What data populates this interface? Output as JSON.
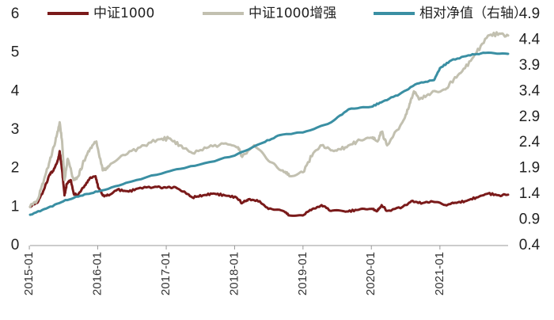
{
  "chart_data": {
    "type": "line",
    "title": "",
    "xlabel": "",
    "ylabel": "",
    "ylim": [
      0,
      6
    ],
    "y2lim": [
      0.4,
      4.9
    ],
    "y_ticks": [
      "0",
      "1",
      "2",
      "3",
      "4",
      "5",
      "6"
    ],
    "y2_ticks": [
      "0.4",
      "0.9",
      "1.4",
      "1.9",
      "2.4",
      "2.9",
      "3.4",
      "3.9",
      "4.4",
      "4.9"
    ],
    "x_ticks": [
      "2015-01",
      "2016-01",
      "2017-01",
      "2018-01",
      "2019-01",
      "2020-01",
      "2021-01"
    ],
    "xlim": [
      "2015-01-05",
      "2021-12-31"
    ],
    "grid": false,
    "legend_position": "top",
    "series": [
      {
        "name": "中证1000",
        "axis": "left",
        "color": "#7a1a1a",
        "points": [
          [
            "2015-01-05",
            1.0
          ],
          [
            "2015-02-15",
            1.12
          ],
          [
            "2015-03-20",
            1.45
          ],
          [
            "2015-04-20",
            1.85
          ],
          [
            "2015-05-10",
            1.95
          ],
          [
            "2015-06-05",
            2.25
          ],
          [
            "2015-06-12",
            2.45
          ],
          [
            "2015-06-25",
            1.95
          ],
          [
            "2015-07-08",
            1.3
          ],
          [
            "2015-07-20",
            1.6
          ],
          [
            "2015-08-10",
            1.7
          ],
          [
            "2015-08-26",
            1.35
          ],
          [
            "2015-09-15",
            1.3
          ],
          [
            "2015-10-15",
            1.5
          ],
          [
            "2015-11-20",
            1.75
          ],
          [
            "2015-12-20",
            1.8
          ],
          [
            "2016-01-05",
            1.5
          ],
          [
            "2016-01-28",
            1.3
          ],
          [
            "2016-03-01",
            1.3
          ],
          [
            "2016-04-15",
            1.45
          ],
          [
            "2016-06-15",
            1.4
          ],
          [
            "2016-08-15",
            1.5
          ],
          [
            "2016-11-15",
            1.52
          ],
          [
            "2016-12-31",
            1.5
          ],
          [
            "2017-02-15",
            1.52
          ],
          [
            "2017-04-01",
            1.4
          ],
          [
            "2017-05-20",
            1.25
          ],
          [
            "2017-07-15",
            1.3
          ],
          [
            "2017-09-10",
            1.35
          ],
          [
            "2017-11-10",
            1.3
          ],
          [
            "2018-01-10",
            1.25
          ],
          [
            "2018-02-10",
            1.1
          ],
          [
            "2018-03-15",
            1.2
          ],
          [
            "2018-05-15",
            1.15
          ],
          [
            "2018-06-30",
            0.95
          ],
          [
            "2018-09-15",
            0.9
          ],
          [
            "2018-10-20",
            0.78
          ],
          [
            "2018-12-31",
            0.78
          ],
          [
            "2019-02-20",
            0.95
          ],
          [
            "2019-04-10",
            1.05
          ],
          [
            "2019-06-01",
            0.9
          ],
          [
            "2019-08-15",
            0.88
          ],
          [
            "2019-10-15",
            0.92
          ],
          [
            "2019-12-31",
            0.95
          ],
          [
            "2020-02-03",
            0.9
          ],
          [
            "2020-02-25",
            1.05
          ],
          [
            "2020-03-25",
            0.9
          ],
          [
            "2020-06-15",
            1.0
          ],
          [
            "2020-08-01",
            1.15
          ],
          [
            "2020-09-30",
            1.1
          ],
          [
            "2020-11-15",
            1.15
          ],
          [
            "2021-01-31",
            1.05
          ],
          [
            "2021-03-15",
            1.1
          ],
          [
            "2021-05-15",
            1.15
          ],
          [
            "2021-07-15",
            1.25
          ],
          [
            "2021-09-15",
            1.35
          ],
          [
            "2021-11-15",
            1.3
          ],
          [
            "2021-12-31",
            1.32
          ]
        ]
      },
      {
        "name": "中证1000增强",
        "axis": "left",
        "color": "#c2c0b0",
        "points": [
          [
            "2015-01-05",
            1.0
          ],
          [
            "2015-02-15",
            1.2
          ],
          [
            "2015-03-20",
            1.7
          ],
          [
            "2015-04-20",
            2.2
          ],
          [
            "2015-05-20",
            2.7
          ],
          [
            "2015-06-12",
            3.2
          ],
          [
            "2015-06-25",
            2.7
          ],
          [
            "2015-07-08",
            1.7
          ],
          [
            "2015-07-25",
            2.25
          ],
          [
            "2015-08-26",
            1.7
          ],
          [
            "2015-09-20",
            1.8
          ],
          [
            "2015-10-20",
            2.2
          ],
          [
            "2015-11-20",
            2.5
          ],
          [
            "2015-12-25",
            2.7
          ],
          [
            "2016-01-28",
            1.95
          ],
          [
            "2016-03-01",
            2.05
          ],
          [
            "2016-05-15",
            2.35
          ],
          [
            "2016-08-15",
            2.55
          ],
          [
            "2016-11-15",
            2.75
          ],
          [
            "2017-01-15",
            2.78
          ],
          [
            "2017-03-15",
            2.6
          ],
          [
            "2017-05-20",
            2.4
          ],
          [
            "2017-08-15",
            2.55
          ],
          [
            "2017-11-15",
            2.65
          ],
          [
            "2018-01-20",
            2.55
          ],
          [
            "2018-02-10",
            2.3
          ],
          [
            "2018-04-15",
            2.6
          ],
          [
            "2018-06-30",
            2.2
          ],
          [
            "2018-09-15",
            1.95
          ],
          [
            "2018-10-20",
            1.8
          ],
          [
            "2018-12-31",
            1.9
          ],
          [
            "2019-02-25",
            2.4
          ],
          [
            "2019-04-10",
            2.6
          ],
          [
            "2019-06-15",
            2.45
          ],
          [
            "2019-08-15",
            2.55
          ],
          [
            "2019-10-15",
            2.7
          ],
          [
            "2019-12-31",
            2.8
          ],
          [
            "2020-02-03",
            2.7
          ],
          [
            "2020-02-25",
            2.95
          ],
          [
            "2020-03-25",
            2.6
          ],
          [
            "2020-06-15",
            3.2
          ],
          [
            "2020-07-20",
            3.6
          ],
          [
            "2020-08-15",
            4.0
          ],
          [
            "2020-09-15",
            3.8
          ],
          [
            "2020-11-15",
            3.95
          ],
          [
            "2021-01-31",
            4.05
          ],
          [
            "2021-03-15",
            4.3
          ],
          [
            "2021-05-15",
            4.6
          ],
          [
            "2021-07-15",
            5.0
          ],
          [
            "2021-09-15",
            5.45
          ],
          [
            "2021-11-15",
            5.5
          ],
          [
            "2021-12-31",
            5.45
          ]
        ]
      },
      {
        "name": "相对净值（右轴）",
        "axis": "right",
        "color": "#3a8fa3",
        "points": [
          [
            "2015-01-05",
            1.0
          ],
          [
            "2015-04-01",
            1.12
          ],
          [
            "2015-07-01",
            1.26
          ],
          [
            "2015-10-01",
            1.37
          ],
          [
            "2016-01-01",
            1.45
          ],
          [
            "2016-06-01",
            1.62
          ],
          [
            "2017-01-01",
            1.83
          ],
          [
            "2017-06-01",
            1.95
          ],
          [
            "2018-01-01",
            2.15
          ],
          [
            "2018-06-01",
            2.4
          ],
          [
            "2018-09-01",
            2.55
          ],
          [
            "2019-01-01",
            2.6
          ],
          [
            "2019-06-01",
            2.8
          ],
          [
            "2019-09-01",
            3.05
          ],
          [
            "2020-01-01",
            3.1
          ],
          [
            "2020-03-01",
            3.2
          ],
          [
            "2020-06-01",
            3.35
          ],
          [
            "2020-09-01",
            3.55
          ],
          [
            "2020-12-01",
            3.62
          ],
          [
            "2021-01-01",
            3.85
          ],
          [
            "2021-03-01",
            4.0
          ],
          [
            "2021-06-01",
            4.1
          ],
          [
            "2021-09-01",
            4.15
          ],
          [
            "2021-12-31",
            4.13
          ]
        ]
      }
    ]
  }
}
